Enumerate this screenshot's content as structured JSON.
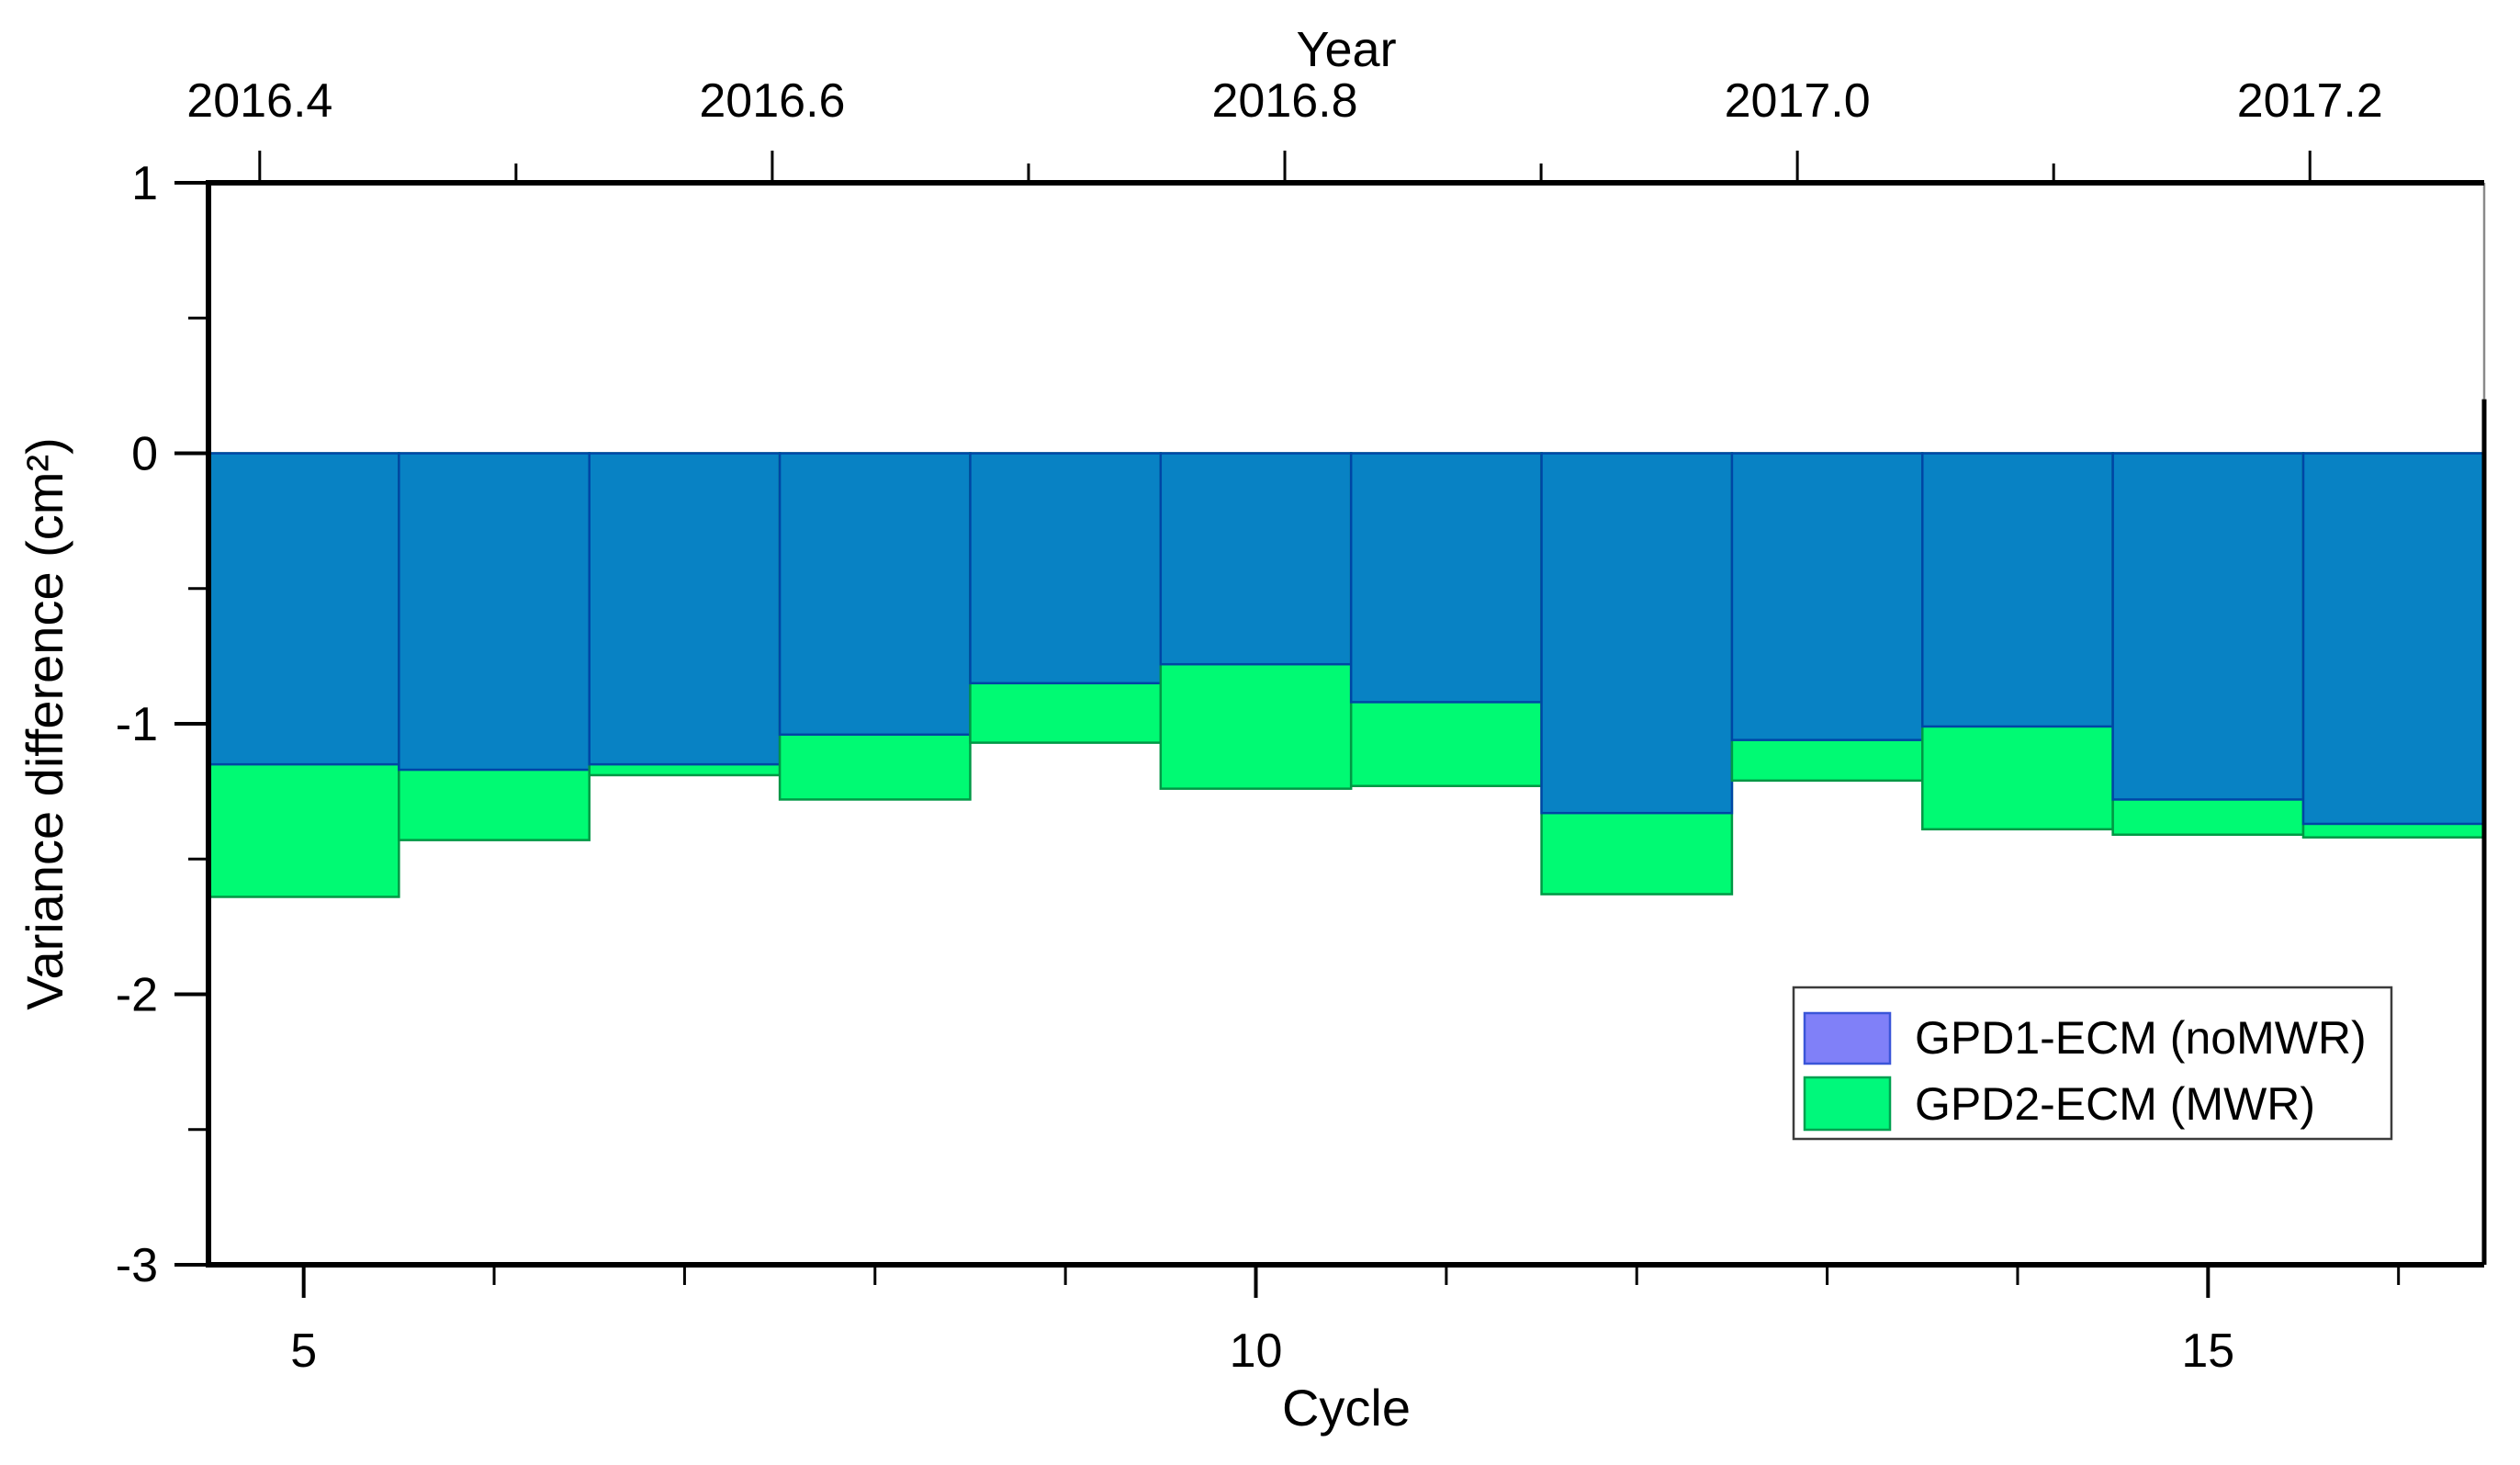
{
  "figure": {
    "background": "#ffffff",
    "frame_color": "#000000",
    "right_spine_thin_color": "#8a8a8a"
  },
  "chart_data": {
    "type": "bar",
    "title": "",
    "axes": {
      "top": {
        "label": "Year",
        "range": [
          2016.38,
          2017.268
        ],
        "major_ticks": [
          2016.4,
          2016.6,
          2016.8,
          2017.0,
          2017.2
        ],
        "major_tick_labels": [
          "2016.4",
          "2016.6",
          "2016.8",
          "2017.0",
          "2017.2"
        ],
        "minor_ticks": [
          2016.5,
          2016.7,
          2016.9,
          2017.1
        ]
      },
      "bottom": {
        "label": "Cycle",
        "range": [
          4.5,
          16.45
        ],
        "major_ticks": [
          5,
          10,
          15
        ],
        "major_tick_labels": [
          "5",
          "10",
          "15"
        ],
        "minor_ticks": [
          6,
          7,
          8,
          9,
          11,
          12,
          13,
          14,
          16
        ]
      },
      "left": {
        "label": "Variance difference (cm²)",
        "range": [
          -3,
          1
        ],
        "major_ticks": [
          1,
          0,
          -1,
          -2,
          -3
        ],
        "major_tick_labels": [
          "1",
          "0",
          "-1",
          "-2",
          "-3"
        ],
        "minor_ticks": [
          0.5,
          -0.5,
          -1.5,
          -2.5
        ]
      }
    },
    "categories": [
      5,
      6,
      7,
      8,
      9,
      10,
      11,
      12,
      13,
      14,
      15,
      16
    ],
    "bar_width": 1.0,
    "grid": false,
    "series": [
      {
        "name": "GPD1-ECM (noMWR)",
        "bar_color": "#0882c4",
        "bar_border": "#0046a5",
        "legend_color": "#8080f8",
        "legend_border": "#3a55d8",
        "values": [
          -1.15,
          -1.17,
          -1.15,
          -1.04,
          -0.85,
          -0.78,
          -0.92,
          -1.33,
          -1.06,
          -1.01,
          -1.28,
          -1.37
        ]
      },
      {
        "name": "GPD2-ECM (MWR)",
        "bar_color": "#00fa73",
        "bar_border": "#009845",
        "legend_color": "#00f87b",
        "legend_border": "#00a050",
        "values": [
          -1.64,
          -1.43,
          -1.19,
          -1.28,
          -1.07,
          -1.24,
          -1.23,
          -1.63,
          -1.21,
          -1.39,
          -1.41,
          -1.42
        ]
      }
    ],
    "partial_bar": {
      "cycle": 17,
      "series": "GPD1-ECM (noMWR)",
      "value": 0.2,
      "note": "bar clipped at right plot edge; only its dark edge line is visible"
    },
    "legend": {
      "position": "lower right",
      "entries": [
        "GPD1-ECM (noMWR)",
        "GPD2-ECM (MWR)"
      ]
    }
  }
}
